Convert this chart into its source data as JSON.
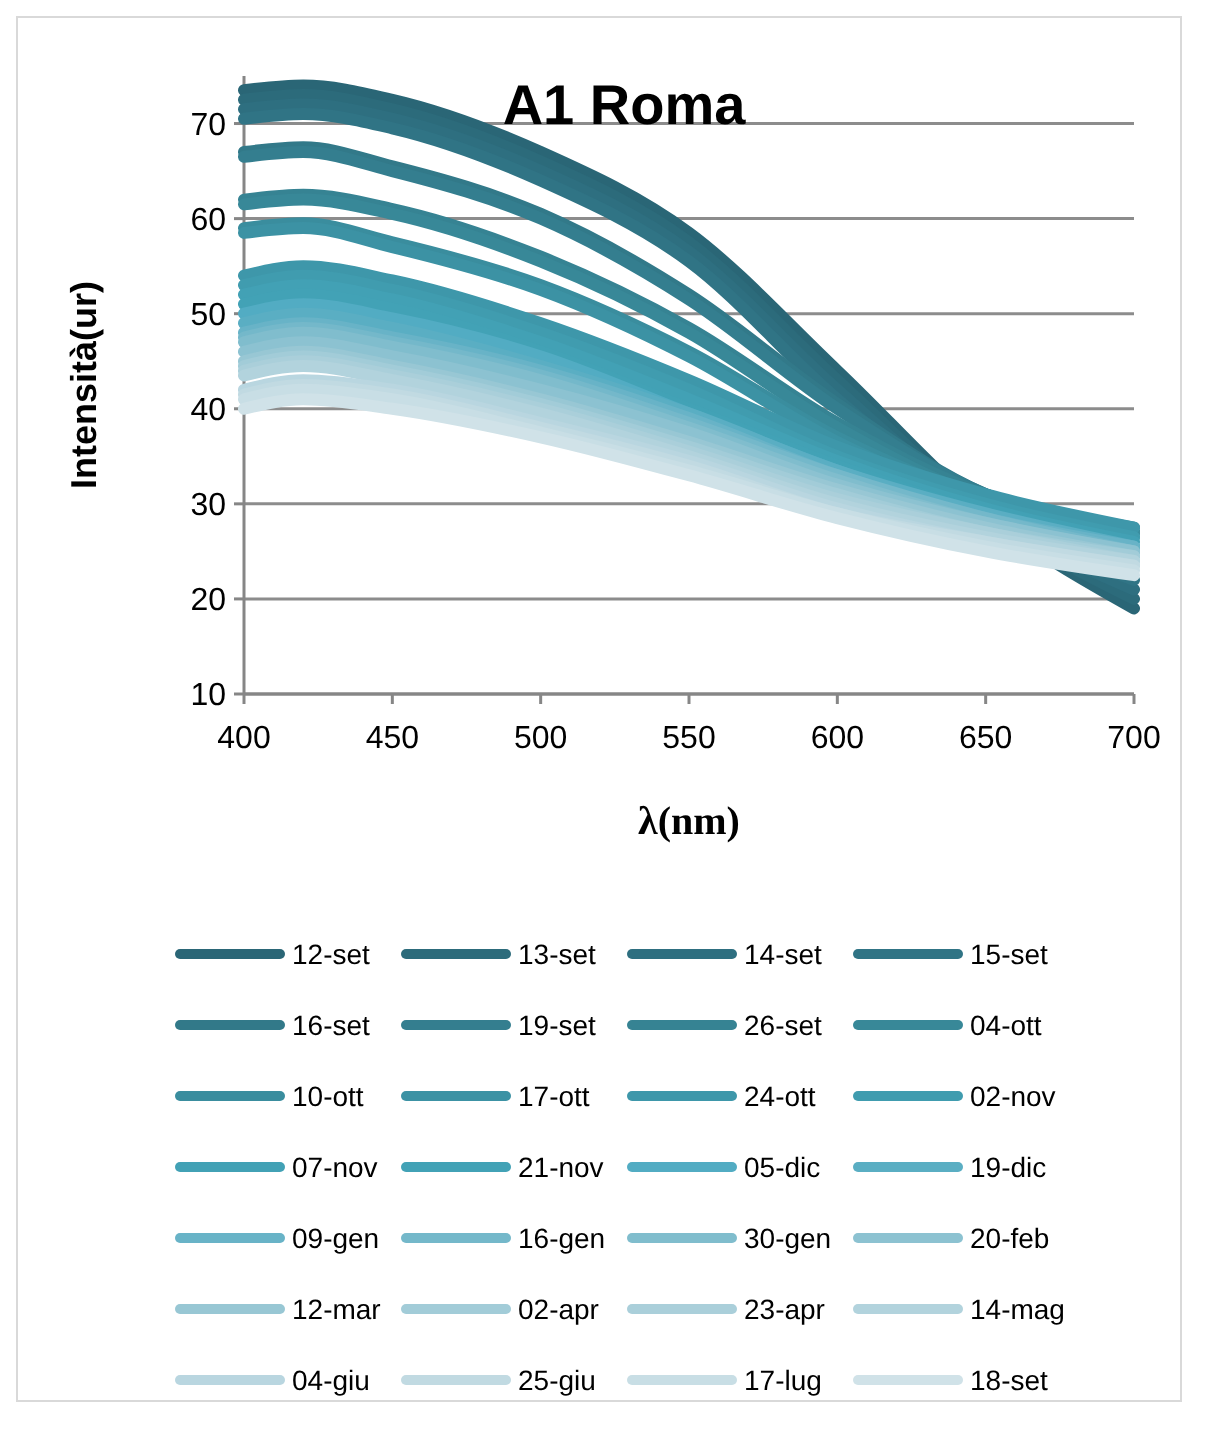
{
  "chart_data": {
    "type": "line",
    "title": "A1 Roma",
    "xlabel": "λ(nm)",
    "ylabel": "Intensità(ur)",
    "x": [
      400,
      420,
      450,
      500,
      550,
      600,
      650,
      700
    ],
    "xlim": [
      400,
      700
    ],
    "xticks": [
      400,
      450,
      500,
      550,
      600,
      650,
      700
    ],
    "ylim": [
      10,
      75
    ],
    "yticks": [
      10,
      20,
      30,
      40,
      50,
      60,
      70
    ],
    "grid": "y",
    "legend": "bottom",
    "marker": "none",
    "line_style": "solid",
    "series": [
      {
        "name": "12-set",
        "color": "#2a6676",
        "values": [
          73.5,
          74,
          72.5,
          67,
          58.5,
          44,
          29,
          19
        ]
      },
      {
        "name": "13-set",
        "color": "#2c6b7b",
        "values": [
          72.5,
          73,
          71.5,
          66,
          57.5,
          43,
          29,
          20
        ]
      },
      {
        "name": "14-set",
        "color": "#2e6f80",
        "values": [
          71.5,
          72,
          70.5,
          65,
          56.5,
          42,
          29,
          21
        ]
      },
      {
        "name": "15-set",
        "color": "#307485",
        "values": [
          70.5,
          71,
          69.5,
          64,
          55.5,
          41,
          29,
          22
        ]
      },
      {
        "name": "16-set",
        "color": "#327989",
        "values": [
          67,
          67.5,
          65.5,
          60.5,
          52,
          40.5,
          31,
          27
        ]
      },
      {
        "name": "19-set",
        "color": "#347e8f",
        "values": [
          66.5,
          67,
          65,
          60,
          51.5,
          40,
          31,
          27
        ]
      },
      {
        "name": "26-set",
        "color": "#368393",
        "values": [
          62,
          62.5,
          61,
          56,
          48.5,
          38.5,
          31,
          27.5
        ]
      },
      {
        "name": "04-ott",
        "color": "#388898",
        "values": [
          61.5,
          62,
          60.5,
          55.5,
          48,
          38,
          30.5,
          27
        ]
      },
      {
        "name": "10-ott",
        "color": "#3a8d9e",
        "values": [
          59,
          59.5,
          57.5,
          53,
          46,
          37,
          30.5,
          27
        ]
      },
      {
        "name": "17-ott",
        "color": "#3c92a4",
        "values": [
          58.5,
          59,
          57,
          52.5,
          45.5,
          36.5,
          30,
          26.5
        ]
      },
      {
        "name": "24-ott",
        "color": "#3e97aa",
        "values": [
          54,
          55,
          53.5,
          49,
          43,
          36,
          31,
          27.5
        ]
      },
      {
        "name": "02-nov",
        "color": "#409caf",
        "values": [
          53,
          54,
          52.5,
          48,
          42,
          35,
          30,
          26.5
        ]
      },
      {
        "name": "07-nov",
        "color": "#42a1b5",
        "values": [
          52,
          53,
          51.5,
          47,
          41,
          34.5,
          29.5,
          26
        ]
      },
      {
        "name": "21-nov",
        "color": "#42a2b6",
        "values": [
          51,
          52,
          50.5,
          46,
          40,
          34,
          29,
          25.5
        ]
      },
      {
        "name": "05-dic",
        "color": "#52acc3",
        "values": [
          50,
          51,
          49.5,
          45.5,
          39.5,
          33.5,
          28.5,
          25
        ]
      },
      {
        "name": "19-dic",
        "color": "#5aaec3",
        "values": [
          49,
          50,
          48.5,
          44.5,
          39.5,
          33.5,
          29,
          25.5
        ]
      },
      {
        "name": "09-gen",
        "color": "#68b3c7",
        "values": [
          48,
          49,
          47.5,
          44,
          39,
          33,
          28.5,
          25.5
        ]
      },
      {
        "name": "16-gen",
        "color": "#74b8ca",
        "values": [
          47.5,
          48.5,
          47,
          43.5,
          38.5,
          33,
          28.5,
          25
        ]
      },
      {
        "name": "30-gen",
        "color": "#80bdcd",
        "values": [
          47,
          48,
          46.5,
          43,
          38,
          32.5,
          28,
          25
        ]
      },
      {
        "name": "20-feb",
        "color": "#8cc2d1",
        "values": [
          46,
          47,
          45.5,
          42,
          37.5,
          32,
          28,
          25
        ]
      },
      {
        "name": "12-mar",
        "color": "#98c7d4",
        "values": [
          45,
          46,
          44.5,
          41,
          36.5,
          31.5,
          27.5,
          24.5
        ]
      },
      {
        "name": "02-apr",
        "color": "#a2ccd8",
        "values": [
          44.5,
          45.5,
          44,
          40.5,
          36,
          31,
          27,
          24.5
        ]
      },
      {
        "name": "23-apr",
        "color": "#aacfda",
        "values": [
          44,
          45,
          43.5,
          40,
          35.5,
          30.5,
          27,
          24
        ]
      },
      {
        "name": "14-mag",
        "color": "#b2d3dd",
        "values": [
          43.5,
          44.5,
          43,
          39.5,
          35,
          30,
          26.5,
          24
        ]
      },
      {
        "name": "04-giu",
        "color": "#b9d6e0",
        "values": [
          42,
          43,
          42,
          38.5,
          34.5,
          29.5,
          26,
          23.5
        ]
      },
      {
        "name": "25-giu",
        "color": "#c1dae2",
        "values": [
          41.5,
          42.5,
          41.5,
          38,
          34,
          29,
          26,
          23.5
        ]
      },
      {
        "name": "17-lug",
        "color": "#c8dee5",
        "values": [
          41,
          42,
          41,
          37.5,
          33.5,
          29,
          25.5,
          23
        ]
      },
      {
        "name": "18-set",
        "color": "#d0e2e8",
        "values": [
          40,
          41,
          40,
          37,
          33,
          28.5,
          25,
          22.5
        ]
      }
    ]
  }
}
